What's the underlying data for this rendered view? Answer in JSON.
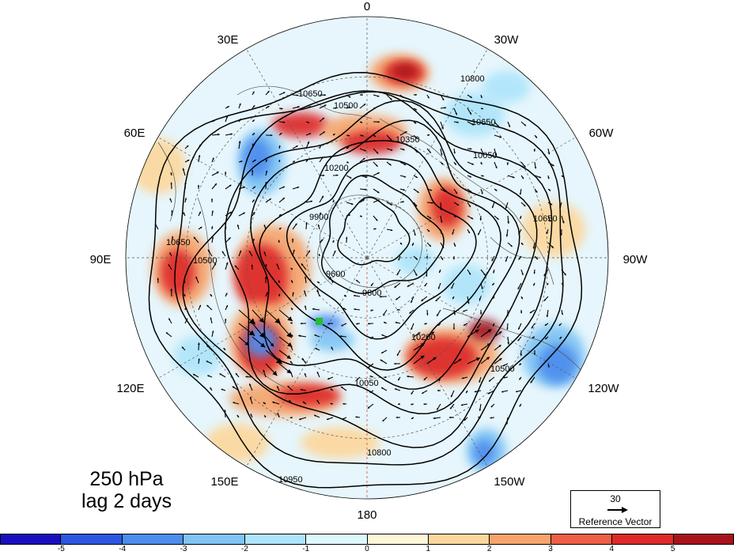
{
  "caption": {
    "level": "250 hPa",
    "lag": "lag 2 days"
  },
  "lon_labels": {
    "deg0": "0",
    "w30": "30W",
    "w60": "60W",
    "w90": "90W",
    "w120": "120W",
    "w150": "150W",
    "deg180": "180",
    "e150": "150E",
    "e120": "120E",
    "e90": "90E",
    "e60": "60E",
    "e30": "30E"
  },
  "contour_labels": [
    "10800",
    "10650",
    "10500",
    "10350",
    "10200",
    "10050",
    "9900",
    "9600",
    "10950",
    "10800",
    "10650",
    "10500",
    "10500",
    "10050",
    "10200",
    "9600",
    "10650",
    "10650"
  ],
  "reference_vector": {
    "magnitude": "30",
    "label": "Reference Vector"
  },
  "colorbar": {
    "colors": [
      "#1a0fbe",
      "#2c57e0",
      "#4d8ded",
      "#7fc4f4",
      "#aee4fa",
      "#def7fd",
      "#fff6d9",
      "#fcd79d",
      "#f6a46c",
      "#ee5f45",
      "#dd2a2a",
      "#a8121c"
    ],
    "ticks": [
      "-5",
      "-4",
      "-3",
      "-2",
      "-1",
      "0",
      "1",
      "2",
      "3",
      "4",
      "5"
    ]
  },
  "field_palette": {
    "pos3": "#a8121c",
    "pos2": "#dd2a2a",
    "pos1": "#f6a46c",
    "pos0": "#fcd79d",
    "neg0": "#aee4fa",
    "neg1": "#7fc4f4",
    "neg2": "#4d8ded",
    "neg3": "#2c57e0"
  }
}
